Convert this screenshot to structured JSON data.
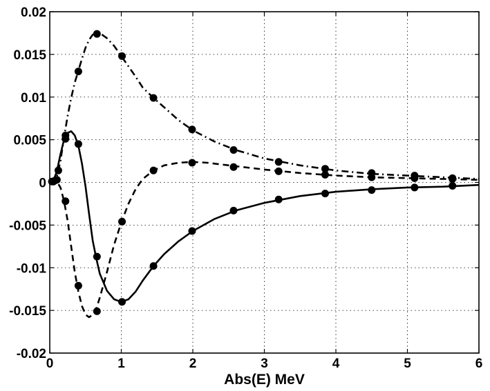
{
  "chart_data": {
    "type": "line",
    "title": "",
    "xlabel": "Abs(E) MeV",
    "ylabel": "",
    "xlim": [
      0,
      6
    ],
    "ylim": [
      -0.02,
      0.02
    ],
    "xticks": [
      0,
      1,
      2,
      3,
      4,
      5,
      6
    ],
    "xtick_labels": [
      "0",
      "1",
      "2",
      "3",
      "4",
      "5",
      "6"
    ],
    "yticks": [
      -0.02,
      -0.015,
      -0.01,
      -0.005,
      0,
      0.005,
      0.01,
      0.015,
      0.02
    ],
    "ytick_labels": [
      "-0.02",
      "-0.015",
      "-0.01",
      "-0.005",
      "0",
      "0.005",
      "0.01",
      "0.015",
      "0.02"
    ],
    "grid": true,
    "legend": "none",
    "series": [
      {
        "line_style": "solid",
        "markers": "filled-circle",
        "color": "#000000",
        "curve": [
          [
            0,
            0
          ],
          [
            0.05,
            0.0002
          ],
          [
            0.1,
            0.0013
          ],
          [
            0.15,
            0.0033
          ],
          [
            0.2,
            0.005
          ],
          [
            0.25,
            0.0058
          ],
          [
            0.3,
            0.006
          ],
          [
            0.35,
            0.0055
          ],
          [
            0.4,
            0.0043
          ],
          [
            0.45,
            0.0022
          ],
          [
            0.5,
            -0.0005
          ],
          [
            0.55,
            -0.0037
          ],
          [
            0.6,
            -0.0068
          ],
          [
            0.65,
            -0.0089
          ],
          [
            0.7,
            -0.0107
          ],
          [
            0.8,
            -0.0127
          ],
          [
            0.9,
            -0.0137
          ],
          [
            1.0,
            -0.014
          ],
          [
            1.1,
            -0.0137
          ],
          [
            1.2,
            -0.0128
          ],
          [
            1.3,
            -0.0115
          ],
          [
            1.45,
            -0.0098
          ],
          [
            1.6,
            -0.0084
          ],
          [
            1.8,
            -0.0069
          ],
          [
            2.0,
            -0.0057
          ],
          [
            2.3,
            -0.0043
          ],
          [
            2.6,
            -0.0033
          ],
          [
            3.0,
            -0.0024
          ],
          [
            3.5,
            -0.0016
          ],
          [
            4.0,
            -0.0011
          ],
          [
            4.5,
            -0.0008
          ],
          [
            5.0,
            -0.0006
          ],
          [
            5.5,
            -0.0005
          ],
          [
            6.0,
            -0.0003
          ]
        ],
        "points": [
          [
            0.03,
            0.0001
          ],
          [
            0.07,
            0.0002
          ],
          [
            0.12,
            0.0014
          ],
          [
            0.22,
            0.0055
          ],
          [
            0.4,
            0.0045
          ],
          [
            0.66,
            -0.0087
          ],
          [
            1.01,
            -0.014
          ],
          [
            1.45,
            -0.0098
          ],
          [
            1.99,
            -0.0057
          ],
          [
            2.57,
            -0.0033
          ],
          [
            3.2,
            -0.002
          ],
          [
            3.85,
            -0.0013
          ],
          [
            4.5,
            -0.0009
          ],
          [
            5.1,
            -0.0006
          ],
          [
            5.63,
            -0.0004
          ]
        ]
      },
      {
        "line_style": "dashed",
        "markers": "filled-circle",
        "color": "#000000",
        "curve": [
          [
            0,
            0
          ],
          [
            0.05,
            0.0001
          ],
          [
            0.1,
            0.0001
          ],
          [
            0.15,
            -0.0006
          ],
          [
            0.2,
            -0.0022
          ],
          [
            0.25,
            -0.0045
          ],
          [
            0.3,
            -0.0075
          ],
          [
            0.35,
            -0.0105
          ],
          [
            0.4,
            -0.0128
          ],
          [
            0.45,
            -0.0145
          ],
          [
            0.5,
            -0.0155
          ],
          [
            0.55,
            -0.0158
          ],
          [
            0.6,
            -0.0155
          ],
          [
            0.65,
            -0.0148
          ],
          [
            0.7,
            -0.0135
          ],
          [
            0.8,
            -0.0105
          ],
          [
            0.9,
            -0.0073
          ],
          [
            1.0,
            -0.0047
          ],
          [
            1.1,
            -0.0025
          ],
          [
            1.2,
            -0.0008
          ],
          [
            1.3,
            0.0004
          ],
          [
            1.45,
            0.0014
          ],
          [
            1.6,
            0.002
          ],
          [
            1.8,
            0.0023
          ],
          [
            2.0,
            0.0024
          ],
          [
            2.2,
            0.0023
          ],
          [
            2.6,
            0.0019
          ],
          [
            3.0,
            0.0015
          ],
          [
            3.5,
            0.0011
          ],
          [
            4.0,
            0.0008
          ],
          [
            4.5,
            0.0006
          ],
          [
            5.0,
            0.0005
          ],
          [
            5.5,
            0.0004
          ],
          [
            6.0,
            0.0003
          ]
        ],
        "points": [
          [
            0.05,
            0.0001
          ],
          [
            0.1,
            0.0003
          ],
          [
            0.22,
            -0.0022
          ],
          [
            0.4,
            -0.0121
          ],
          [
            0.66,
            -0.0151
          ],
          [
            1.01,
            -0.0046
          ],
          [
            1.45,
            0.0014
          ],
          [
            1.99,
            0.0023
          ],
          [
            2.57,
            0.0018
          ],
          [
            3.2,
            0.0013
          ],
          [
            3.85,
            0.0009
          ],
          [
            4.5,
            0.0006
          ],
          [
            5.1,
            0.0005
          ],
          [
            5.63,
            0.0004
          ]
        ]
      },
      {
        "line_style": "dash-dot",
        "markers": "filled-circle",
        "color": "#000000",
        "curve": [
          [
            0,
            0
          ],
          [
            0.05,
            0.0001
          ],
          [
            0.1,
            0.0007
          ],
          [
            0.15,
            0.0025
          ],
          [
            0.2,
            0.0053
          ],
          [
            0.25,
            0.0078
          ],
          [
            0.3,
            0.0099
          ],
          [
            0.35,
            0.0117
          ],
          [
            0.4,
            0.0131
          ],
          [
            0.45,
            0.0145
          ],
          [
            0.5,
            0.0158
          ],
          [
            0.55,
            0.0167
          ],
          [
            0.6,
            0.0173
          ],
          [
            0.65,
            0.0175
          ],
          [
            0.7,
            0.0175
          ],
          [
            0.8,
            0.0169
          ],
          [
            0.9,
            0.016
          ],
          [
            1.0,
            0.0148
          ],
          [
            1.1,
            0.0136
          ],
          [
            1.2,
            0.0124
          ],
          [
            1.3,
            0.0111
          ],
          [
            1.45,
            0.0099
          ],
          [
            1.6,
            0.0088
          ],
          [
            1.8,
            0.0073
          ],
          [
            2.0,
            0.0061
          ],
          [
            2.3,
            0.0048
          ],
          [
            2.6,
            0.0038
          ],
          [
            3.0,
            0.0028
          ],
          [
            3.5,
            0.002
          ],
          [
            4.0,
            0.0014
          ],
          [
            4.5,
            0.001
          ],
          [
            5.0,
            0.0008
          ],
          [
            5.5,
            0.0006
          ],
          [
            6.0,
            0.0004
          ]
        ],
        "points": [
          [
            0.05,
            0.0001
          ],
          [
            0.22,
            0.0051
          ],
          [
            0.4,
            0.013
          ],
          [
            0.66,
            0.0174
          ],
          [
            1.01,
            0.0148
          ],
          [
            1.45,
            0.0099
          ],
          [
            1.99,
            0.0062
          ],
          [
            2.57,
            0.0038
          ],
          [
            3.2,
            0.0024
          ],
          [
            3.85,
            0.0016
          ],
          [
            4.5,
            0.0011
          ],
          [
            5.1,
            0.0008
          ],
          [
            5.63,
            0.0005
          ]
        ]
      }
    ]
  }
}
